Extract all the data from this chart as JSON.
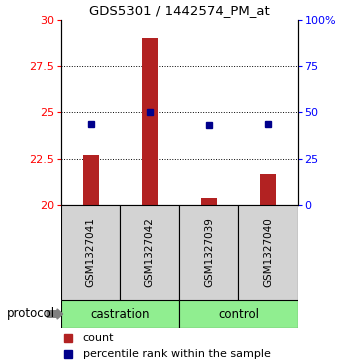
{
  "title": "GDS5301 / 1442574_PM_at",
  "samples": [
    "GSM1327041",
    "GSM1327042",
    "GSM1327039",
    "GSM1327040"
  ],
  "groups": [
    "castration",
    "castration",
    "control",
    "control"
  ],
  "bar_values": [
    22.7,
    29.0,
    20.4,
    21.7
  ],
  "bar_base": 20.0,
  "percentile_values": [
    44,
    50,
    43,
    44
  ],
  "ylim_left": [
    20,
    30
  ],
  "ylim_right": [
    0,
    100
  ],
  "yticks_left": [
    20,
    22.5,
    25,
    27.5,
    30
  ],
  "yticks_right": [
    0,
    25,
    50,
    75,
    100
  ],
  "bar_color": "#b22222",
  "dot_color": "#00008b",
  "sample_box_color": "#d3d3d3",
  "group_green": "#90ee90",
  "legend_items": [
    "count",
    "percentile rank within the sample"
  ],
  "protocol_label": "protocol",
  "figsize": [
    3.5,
    3.63
  ],
  "dpi": 100
}
